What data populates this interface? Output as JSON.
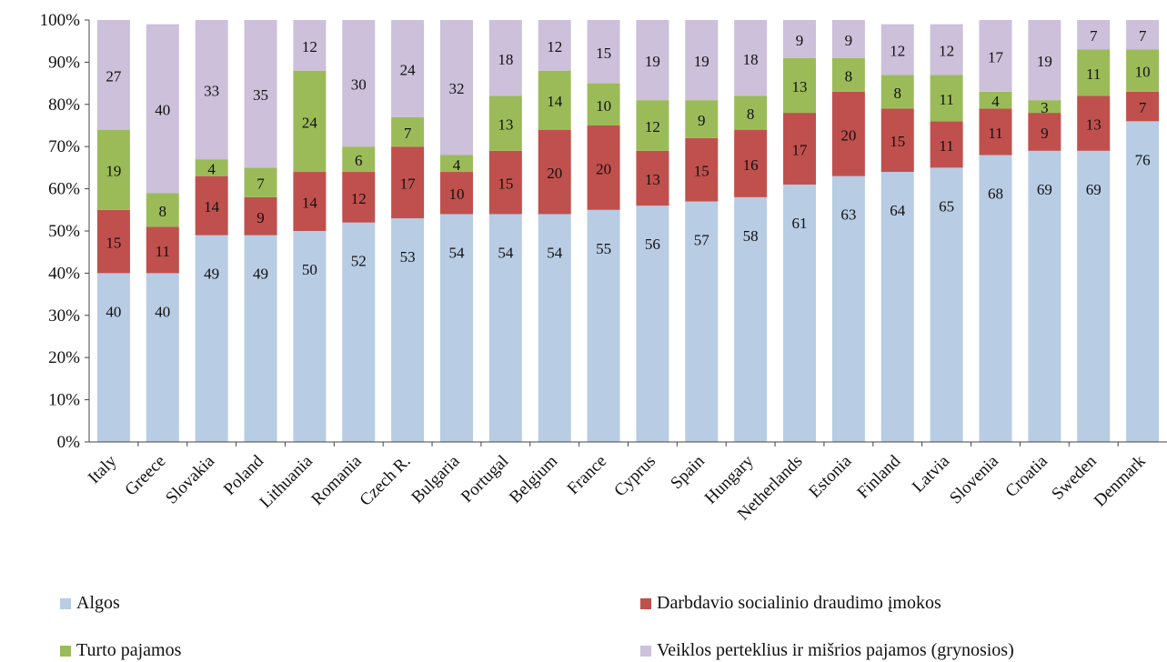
{
  "chart_data": {
    "type": "bar",
    "stacked": true,
    "percent_stacked": true,
    "categories": [
      "Italy",
      "Greece",
      "Slovakia",
      "Poland",
      "Lithuania",
      "Romania",
      "Czech R.",
      "Bulgaria",
      "Portugal",
      "Belgium",
      "France",
      "Cyprus",
      "Spain",
      "Hungary",
      "Netherlands",
      "Estonia",
      "Finland",
      "Latvia",
      "Slovenia",
      "Croatia",
      "Sweden",
      "Denmark"
    ],
    "series": [
      {
        "name": "Algos",
        "color": "#b8cce4",
        "values": [
          40,
          40,
          49,
          49,
          50,
          52,
          53,
          54,
          54,
          54,
          55,
          56,
          57,
          58,
          61,
          63,
          64,
          65,
          68,
          69,
          69,
          76
        ]
      },
      {
        "name": "Darbdavio  socialinio draudimo įmokos",
        "color": "#c0504d",
        "values": [
          15,
          11,
          14,
          9,
          14,
          12,
          17,
          10,
          15,
          20,
          20,
          13,
          15,
          16,
          17,
          20,
          15,
          11,
          11,
          9,
          13,
          7
        ]
      },
      {
        "name": "Turto pajamos",
        "color": "#9bbb59",
        "values": [
          19,
          8,
          4,
          7,
          24,
          6,
          7,
          4,
          13,
          14,
          10,
          12,
          9,
          8,
          13,
          8,
          8,
          11,
          4,
          3,
          11,
          10
        ]
      },
      {
        "name": "Veiklos perteklius ir mišrios pajamos (grynosios)",
        "color": "#ccc0da",
        "values": [
          27,
          40,
          33,
          35,
          12,
          30,
          24,
          32,
          18,
          12,
          15,
          19,
          19,
          18,
          9,
          9,
          12,
          12,
          17,
          19,
          7,
          7
        ]
      }
    ],
    "y_ticks": [
      "0%",
      "10%",
      "20%",
      "30%",
      "40%",
      "50%",
      "60%",
      "70%",
      "80%",
      "90%",
      "100%"
    ],
    "ylim": [
      0,
      100
    ],
    "grid": false,
    "legend_position": "bottom"
  }
}
